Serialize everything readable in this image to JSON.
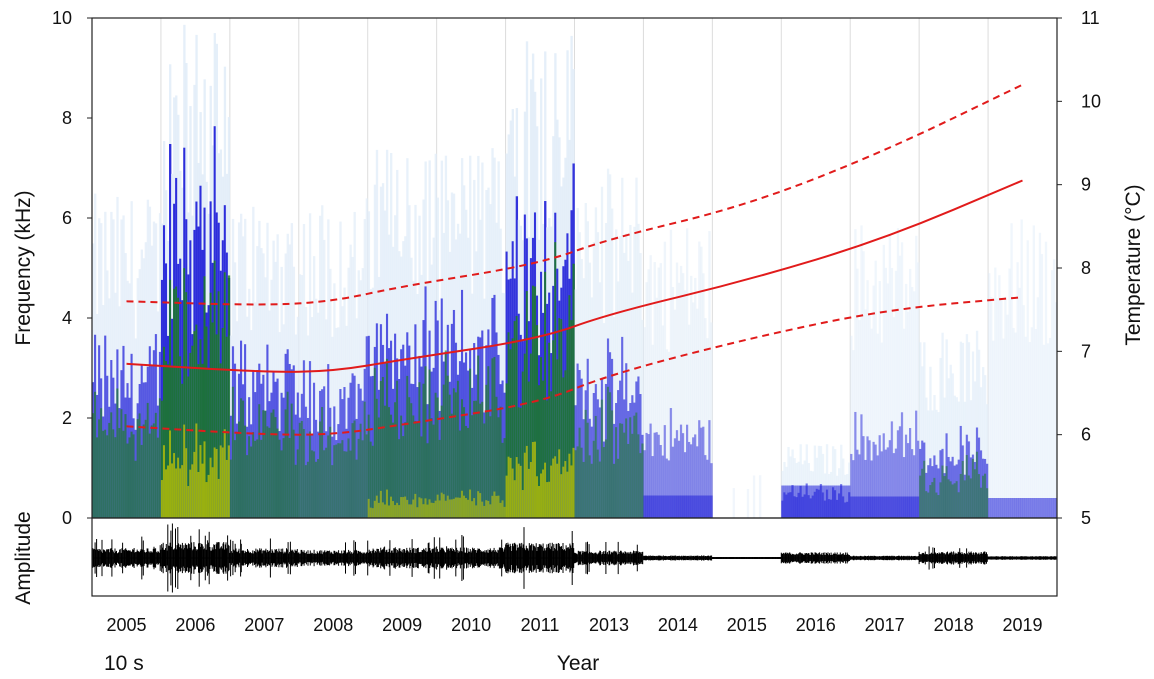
{
  "chart_data": {
    "type": "spectrogram",
    "xlabel": "Year",
    "ylabel_left": "Frequency (kHz)",
    "ylabel_right": "Temperature (°C)",
    "amplitude_label": "Amplitude",
    "scale_note": "10 s",
    "ylim_left": [
      0,
      10
    ],
    "ylim_right": [
      5,
      11
    ],
    "yticks_left": [
      "0",
      "2",
      "4",
      "6",
      "8",
      "10"
    ],
    "yticks_right": [
      "5",
      "6",
      "7",
      "8",
      "9",
      "10",
      "11"
    ],
    "categories": [
      "2005",
      "2006",
      "2007",
      "2008",
      "2009",
      "2010",
      "2011",
      "2013",
      "2014",
      "2015",
      "2016",
      "2017",
      "2018",
      "2019"
    ],
    "segments": [
      {
        "year": "2005",
        "activity": 0.55,
        "max_khz": 6.5
      },
      {
        "year": "2006",
        "activity": 0.95,
        "max_khz": 10
      },
      {
        "year": "2007",
        "activity": 0.55,
        "max_khz": 6.5
      },
      {
        "year": "2008",
        "activity": 0.45,
        "max_khz": 6.5
      },
      {
        "year": "2009",
        "activity": 0.6,
        "max_khz": 7.5
      },
      {
        "year": "2010",
        "activity": 0.6,
        "max_khz": 7.5
      },
      {
        "year": "2011",
        "activity": 0.9,
        "max_khz": 10
      },
      {
        "year": "2013",
        "activity": 0.4,
        "max_khz": 7
      },
      {
        "year": "2014",
        "activity": 0.1,
        "max_khz": 6
      },
      {
        "year": "2015",
        "activity": 0.0,
        "max_khz": 1
      },
      {
        "year": "2016",
        "activity": 0.3,
        "max_khz": 1.5
      },
      {
        "year": "2017",
        "activity": 0.08,
        "max_khz": 6
      },
      {
        "year": "2018",
        "activity": 0.35,
        "max_khz": 3.8
      },
      {
        "year": "2019",
        "activity": 0.05,
        "max_khz": 6
      }
    ],
    "temperature_trend": {
      "x": [
        "2005",
        "2007",
        "2008",
        "2009",
        "2011",
        "2013",
        "2015",
        "2017",
        "2019"
      ],
      "mean": [
        6.85,
        6.75,
        6.76,
        6.9,
        7.15,
        7.45,
        7.85,
        8.35,
        9.05
      ],
      "upper": [
        7.6,
        7.55,
        7.6,
        7.78,
        8.05,
        8.35,
        8.75,
        9.4,
        10.2
      ],
      "lower": [
        6.1,
        6.0,
        6.0,
        6.12,
        6.38,
        6.72,
        7.15,
        7.5,
        7.65
      ]
    },
    "colors": {
      "spectrogram_low": "#e0ecf8",
      "spectrogram_mid": "#1f1fd8",
      "spectrogram_high": "#1a7f1a",
      "spectrogram_peak": "#c8c800",
      "trend": "#e11b1b",
      "waveform": "#000000"
    }
  }
}
